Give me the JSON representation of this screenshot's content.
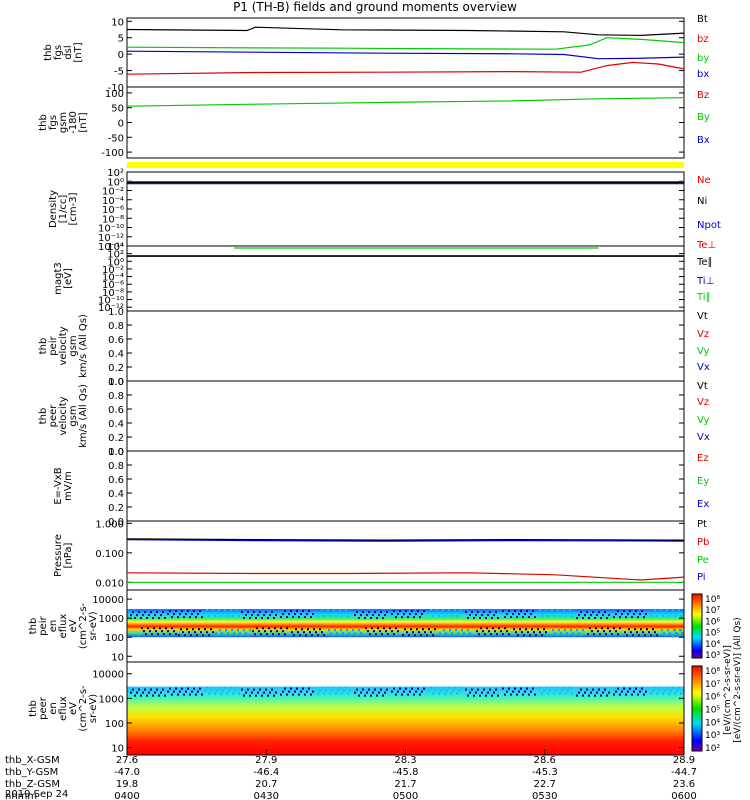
{
  "title": "P1 (TH-B) fields and ground moments overview",
  "colors": {
    "black": "#000000",
    "red": "#e00000",
    "green": "#00cc00",
    "blue": "#0000cc",
    "yellow": "#ffff00"
  },
  "chart_data": [
    {
      "id": "fgs-dsl",
      "type": "line",
      "ylabel_lines": [
        "thb",
        "fgs",
        "dsl",
        "[nT]"
      ],
      "ylim": [
        -10,
        11
      ],
      "yticks": [
        "10",
        "5",
        "0",
        "-5",
        "-10"
      ],
      "ytick_values": [
        10,
        5,
        0,
        -5,
        -10
      ],
      "series": [
        {
          "name": "Bt",
          "color": "black",
          "x": [
            27.6,
            27.88,
            27.9,
            28.1,
            28.4,
            28.62,
            28.7,
            28.8,
            28.9
          ],
          "y": [
            7.5,
            7.2,
            8.2,
            7.4,
            7.2,
            6.8,
            5.9,
            5.7,
            6.4
          ]
        },
        {
          "name": "bz",
          "color": "red",
          "x": [
            27.6,
            27.9,
            28.2,
            28.5,
            28.66,
            28.72,
            28.78,
            28.84,
            28.9
          ],
          "y": [
            -6.1,
            -5.6,
            -5.5,
            -5.3,
            -5.5,
            -3.5,
            -2.5,
            -3.0,
            -4.5
          ]
        },
        {
          "name": "by",
          "color": "green",
          "x": [
            27.6,
            27.9,
            28.1,
            28.4,
            28.6,
            28.68,
            28.72,
            28.8,
            28.9
          ],
          "y": [
            2.1,
            1.9,
            1.8,
            1.6,
            1.5,
            2.8,
            5.0,
            4.5,
            3.5
          ]
        },
        {
          "name": "bx",
          "color": "blue",
          "x": [
            27.6,
            27.9,
            28.2,
            28.5,
            28.62,
            28.7,
            28.78,
            28.9
          ],
          "y": [
            0.9,
            0.6,
            0.3,
            0.1,
            -0.1,
            -1.4,
            -1.3,
            -0.9
          ]
        }
      ]
    },
    {
      "id": "fgs-gsm",
      "type": "line",
      "ylabel_lines": [
        "thb",
        "fgs",
        "gsm",
        "-180",
        "[nT]"
      ],
      "ylim": [
        -120,
        120
      ],
      "yticks": [
        "100",
        "50",
        "0",
        "-50",
        "-100"
      ],
      "ytick_values": [
        100,
        50,
        0,
        -50,
        -100
      ],
      "series": [
        {
          "name": "Bz",
          "color": "red",
          "x": [],
          "y": []
        },
        {
          "name": "By",
          "color": "green",
          "x": [
            27.6,
            27.9,
            28.2,
            28.5,
            28.7,
            28.9
          ],
          "y": [
            55,
            62,
            68,
            73,
            80,
            84
          ]
        },
        {
          "name": "Bx",
          "color": "blue",
          "x": [],
          "y": []
        }
      ]
    },
    {
      "id": "density",
      "type": "line",
      "ylabel_lines": [
        "Density",
        "[1/cc]",
        "[cm-3]"
      ],
      "yscale": "log",
      "ylim": [
        1e-14,
        100
      ],
      "yticks": [
        "10²",
        "10⁰",
        "10⁻²",
        "10⁻⁴",
        "10⁻⁶",
        "10⁻⁸",
        "10⁻¹⁰",
        "10⁻¹²",
        "10⁻¹⁴"
      ],
      "ytick_values": [
        100,
        1,
        0.01,
        0.0001,
        1e-06,
        1e-08,
        1e-10,
        1e-12,
        1e-14
      ],
      "series": [
        {
          "name": "Ne",
          "color": "red",
          "x": [
            27.6,
            28.9
          ],
          "y": [
            0.8,
            0.8
          ]
        },
        {
          "name": "Ni",
          "color": "black",
          "x": [
            27.6,
            28.9
          ],
          "y": [
            0.5,
            0.5
          ]
        },
        {
          "name": "Npot",
          "color": "blue",
          "x": [
            27.6,
            28.9
          ],
          "y": [
            0.3,
            0.3
          ]
        }
      ]
    },
    {
      "id": "temperature",
      "type": "line",
      "ylabel_lines": [
        "magt3",
        "[eV]"
      ],
      "yscale": "log",
      "ylim": [
        1e-13,
        10000
      ],
      "yticks": [
        "10⁴",
        "10²",
        "10⁰",
        "10⁻²",
        "10⁻⁴",
        "10⁻⁶",
        "10⁻⁸",
        "10⁻¹⁰",
        "10⁻¹²"
      ],
      "ytick_values": [
        10000,
        100,
        1,
        0.01,
        0.0001,
        1e-06,
        1e-08,
        1e-10,
        1e-12
      ],
      "series": [
        {
          "name": "Te⊥",
          "color": "red",
          "x": [
            27.6,
            28.9
          ],
          "y": [
            30,
            30
          ]
        },
        {
          "name": "Te∥",
          "color": "black",
          "x": [
            27.6,
            28.9
          ],
          "y": [
            20,
            20
          ]
        },
        {
          "name": "Ti⊥",
          "color": "blue",
          "x": [],
          "y": []
        },
        {
          "name": "Ti∥",
          "color": "green",
          "x": [
            27.85,
            27.95,
            28.62,
            28.7
          ],
          "y": [
            3000,
            3000,
            3000,
            3000
          ]
        }
      ]
    },
    {
      "id": "peir-velocity",
      "type": "line",
      "ylabel_lines": [
        "thb",
        "peir",
        "velocity",
        "gsm",
        "km/s (All Qs)"
      ],
      "ylim": [
        0,
        1
      ],
      "yticks": [
        "1.0",
        "0.8",
        "0.6",
        "0.4",
        "0.2",
        "0.0"
      ],
      "ytick_values": [
        1.0,
        0.8,
        0.6,
        0.4,
        0.2,
        0.0
      ],
      "series": [
        {
          "name": "Vt",
          "color": "black",
          "x": [],
          "y": []
        },
        {
          "name": "Vz",
          "color": "red",
          "x": [],
          "y": []
        },
        {
          "name": "Vy",
          "color": "green",
          "x": [],
          "y": []
        },
        {
          "name": "Vx",
          "color": "blue",
          "x": [],
          "y": []
        }
      ]
    },
    {
      "id": "peer-velocity",
      "type": "line",
      "ylabel_lines": [
        "thb",
        "peer",
        "velocity",
        "gsm",
        "km/s (All Qs)"
      ],
      "ylim": [
        0,
        1
      ],
      "yticks": [
        "1.0",
        "0.8",
        "0.6",
        "0.4",
        "0.2",
        "0.0"
      ],
      "ytick_values": [
        1.0,
        0.8,
        0.6,
        0.4,
        0.2,
        0.0
      ],
      "series": [
        {
          "name": "Vt",
          "color": "black",
          "x": [],
          "y": []
        },
        {
          "name": "Vz",
          "color": "red",
          "x": [],
          "y": []
        },
        {
          "name": "Vy",
          "color": "green",
          "x": [],
          "y": []
        },
        {
          "name": "Vx",
          "color": "blue",
          "x": [],
          "y": []
        }
      ]
    },
    {
      "id": "efield",
      "type": "line",
      "ylabel_lines": [
        "E=-VxB",
        "mV/m"
      ],
      "ylim": [
        0,
        1
      ],
      "yticks": [
        "1.0",
        "0.8",
        "0.6",
        "0.4",
        "0.2",
        "0.0"
      ],
      "ytick_values": [
        1.0,
        0.8,
        0.6,
        0.4,
        0.2,
        0.0
      ],
      "series": [
        {
          "name": "Ez",
          "color": "red",
          "x": [],
          "y": []
        },
        {
          "name": "Ey",
          "color": "green",
          "x": [],
          "y": []
        },
        {
          "name": "Ex",
          "color": "blue",
          "x": [],
          "y": []
        }
      ]
    },
    {
      "id": "pressure",
      "type": "line",
      "ylabel_lines": [
        "Pressure",
        "[nPa]"
      ],
      "yscale": "log",
      "ylim": [
        0.0055,
        1.2
      ],
      "yticks": [
        "1.000",
        "0.100",
        "0.010"
      ],
      "ytick_values": [
        1.0,
        0.1,
        0.01
      ],
      "series": [
        {
          "name": "Pt",
          "color": "black",
          "x": [
            27.6,
            27.9,
            28.2,
            28.5,
            28.9
          ],
          "y": [
            0.3,
            0.28,
            0.27,
            0.28,
            0.27
          ]
        },
        {
          "name": "Pb",
          "color": "red",
          "x": [
            27.6,
            27.9,
            28.1,
            28.4,
            28.6,
            28.8,
            28.9
          ],
          "y": [
            0.021,
            0.02,
            0.02,
            0.021,
            0.018,
            0.012,
            0.015
          ]
        },
        {
          "name": "Pe",
          "color": "green",
          "x": [
            27.6,
            28.0,
            28.4,
            28.8,
            28.9
          ],
          "y": [
            0.01,
            0.01,
            0.01,
            0.01,
            0.01
          ]
        },
        {
          "name": "Pi",
          "color": "blue",
          "x": [
            27.6,
            27.9,
            28.2,
            28.5,
            28.9
          ],
          "y": [
            0.28,
            0.26,
            0.25,
            0.26,
            0.25
          ]
        }
      ]
    },
    {
      "id": "peir-eflux",
      "type": "heatmap",
      "ylabel_lines": [
        "thb",
        "peir",
        "en",
        "eflux",
        "eV",
        "(cm^2-s-",
        "sr-eV)"
      ],
      "yscale": "log",
      "ylim": [
        5,
        30000
      ],
      "yticks": [
        "10000",
        "1000",
        "100",
        "10"
      ],
      "ytick_values": [
        10000,
        1000,
        100,
        10
      ],
      "band_energy_range": [
        100,
        3000
      ],
      "colorbar_ticks": [
        "10⁸",
        "10⁷",
        "10⁶",
        "10⁵",
        "10⁴",
        "10³"
      ],
      "colorbar_label": "[eV/(cm^2-s-sr-eV)] (All Qs)"
    },
    {
      "id": "peer-eflux",
      "type": "heatmap",
      "ylabel_lines": [
        "thb",
        "peer",
        "en",
        "eflux",
        "eV",
        "(cm^2-s-",
        "sr-eV)"
      ],
      "yscale": "log",
      "ylim": [
        5,
        30000
      ],
      "yticks": [
        "10000",
        "1000",
        "100",
        "10"
      ],
      "ytick_values": [
        10000,
        1000,
        100,
        10
      ],
      "band_energy_range": [
        5,
        3000
      ],
      "colorbar_ticks": [
        "10⁸",
        "10⁷",
        "10⁶",
        "10⁵",
        "10⁴",
        "10³",
        "10²"
      ],
      "colorbar_label": "[eV/(cm^2-s-sr-eV)]"
    }
  ],
  "time_axis": {
    "xlim": [
      27.6,
      28.9
    ],
    "rows": [
      {
        "label": "thb_X-GSM",
        "values": [
          "27.6",
          "27.9",
          "28.3",
          "28.6",
          "28.9"
        ]
      },
      {
        "label": "thb_Y-GSM",
        "values": [
          "-47.0",
          "-46.4",
          "-45.8",
          "-45.3",
          "-44.7"
        ]
      },
      {
        "label": "thb_Z-GSM",
        "values": [
          "19.8",
          "20.7",
          "21.7",
          "22.7",
          "23.6"
        ]
      },
      {
        "label": "hhmm",
        "values": [
          "0400",
          "0430",
          "0500",
          "0530",
          "0600"
        ]
      }
    ],
    "date": "2019 Sep 24"
  }
}
